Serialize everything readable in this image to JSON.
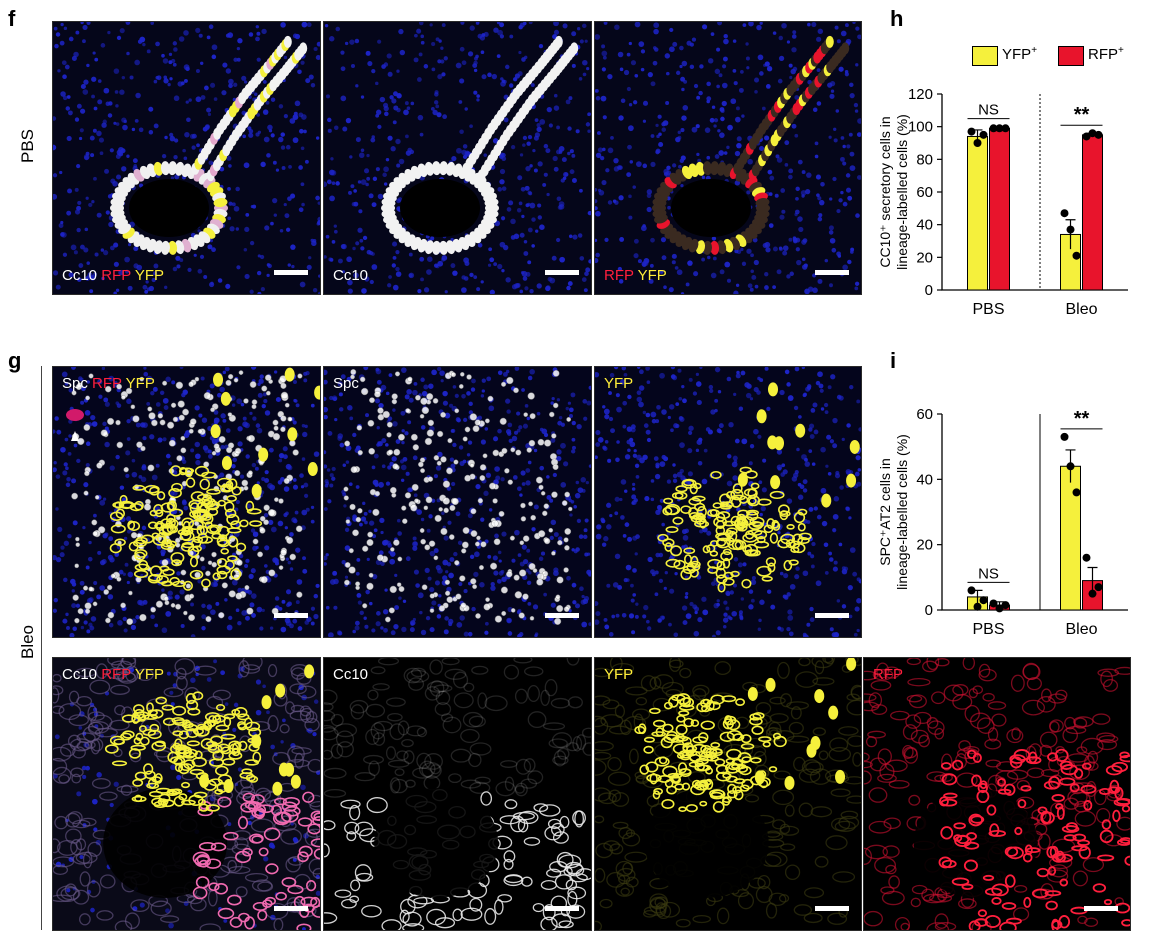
{
  "panel_letters": {
    "f": "f",
    "g": "g",
    "h": "h",
    "i": "i"
  },
  "row_labels": {
    "pbs": "PBS",
    "bleo": "Bleo"
  },
  "colors": {
    "yfp": "#f5f03c",
    "rfp": "#e8142c",
    "nuclei": "#1d24c8"
  },
  "panels": {
    "f1": {
      "channels": [
        {
          "text": "Cc10",
          "color": "white"
        },
        {
          "text": "RFP",
          "color": "red"
        },
        {
          "text": "YFP",
          "color": "yellow"
        }
      ]
    },
    "f2": {
      "channels": [
        {
          "text": "Cc10",
          "color": "white"
        }
      ]
    },
    "f3": {
      "channels": [
        {
          "text": "RFP",
          "color": "red"
        },
        {
          "text": "YFP",
          "color": "yellow"
        }
      ]
    },
    "g1": {
      "channels": [
        {
          "text": "Spc",
          "color": "white"
        },
        {
          "text": "RFP",
          "color": "red"
        },
        {
          "text": "YFP",
          "color": "yellow"
        }
      ]
    },
    "g2": {
      "channels": [
        {
          "text": "Spc",
          "color": "white"
        }
      ]
    },
    "g3": {
      "channels": [
        {
          "text": "YFP",
          "color": "yellow"
        }
      ]
    },
    "g4": {
      "channels": [
        {
          "text": "Cc10",
          "color": "white"
        },
        {
          "text": "RFP",
          "color": "red"
        },
        {
          "text": "YFP",
          "color": "yellow"
        }
      ]
    },
    "g5": {
      "channels": [
        {
          "text": "Cc10",
          "color": "white"
        }
      ]
    },
    "g6": {
      "channels": [
        {
          "text": "YFP",
          "color": "yellow"
        }
      ]
    },
    "g7": {
      "channels": [
        {
          "text": "RFP",
          "color": "red"
        }
      ]
    }
  },
  "legend": [
    {
      "label": "YFP",
      "sup": "+",
      "color": "#f5f03c"
    },
    {
      "label": "RFP",
      "sup": "+",
      "color": "#e8142c"
    }
  ],
  "chart_data": [
    {
      "panel": "h",
      "type": "bar",
      "ylabel_lines": [
        "CC10⁺ secretory cells in",
        "lineage-labelled cells (%)"
      ],
      "categories": [
        "PBS",
        "Bleo"
      ],
      "ylim": [
        0,
        120
      ],
      "yticks": [
        0,
        20,
        40,
        60,
        80,
        100,
        120
      ],
      "series": [
        {
          "name": "YFP⁺",
          "values": [
            94,
            34
          ],
          "errors": [
            4,
            9
          ],
          "points": [
            [
              97,
              90,
              95
            ],
            [
              47,
              37,
              21
            ]
          ]
        },
        {
          "name": "RFP⁺",
          "values": [
            99,
            95
          ],
          "errors": [
            1,
            1
          ],
          "points": [
            [
              99,
              99,
              99
            ],
            [
              94,
              96,
              95
            ]
          ]
        }
      ],
      "significance": [
        "NS",
        "**"
      ]
    },
    {
      "panel": "i",
      "type": "bar",
      "ylabel_lines": [
        "SPC⁺AT2 cells in",
        "lineage-labelled cells (%)"
      ],
      "categories": [
        "PBS",
        "Bleo"
      ],
      "ylim": [
        0,
        60
      ],
      "yticks": [
        0,
        20,
        40,
        60
      ],
      "series": [
        {
          "name": "YFP⁺",
          "values": [
            4,
            44
          ],
          "errors": [
            2,
            5
          ],
          "points": [
            [
              6,
              1,
              3
            ],
            [
              53,
              44,
              36
            ]
          ]
        },
        {
          "name": "RFP⁺",
          "values": [
            1.5,
            9
          ],
          "errors": [
            1,
            4
          ],
          "points": [
            [
              2,
              0.5,
              1.5
            ],
            [
              16,
              5,
              7
            ]
          ]
        }
      ],
      "significance": [
        "NS",
        "**"
      ]
    }
  ]
}
